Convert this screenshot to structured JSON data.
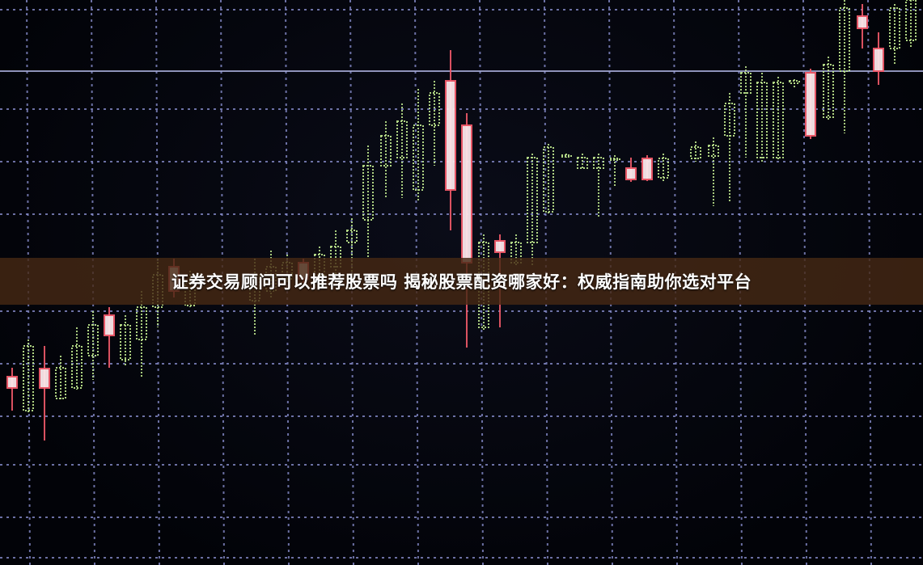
{
  "banner": {
    "title": "证券交易顾问可以推荐股票吗 揭秘股票配资哪家好：权威指南助你选对平台"
  },
  "colors": {
    "grid": "#8f95d8",
    "up_candle": "#b9e08a",
    "down_candle": "#f25a6a",
    "banner_bg": "#46281a"
  }
}
